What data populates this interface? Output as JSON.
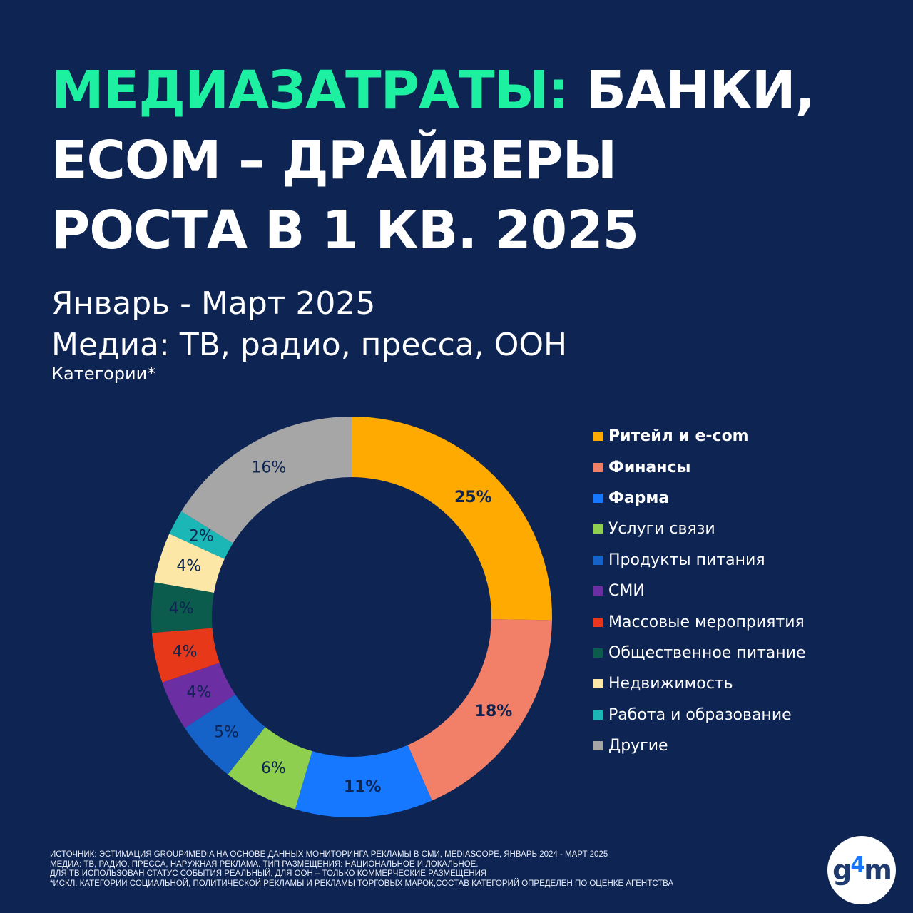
{
  "title": {
    "accent": "МЕДИАЗАТРАТЫ:",
    "line1_rest": " БАНКИ,",
    "line2": "ECOM – ДРАЙВЕРЫ",
    "line3": "РОСТА В 1 КВ. 2025"
  },
  "subtitle": {
    "period": "Январь - Март 2025",
    "media": "Медиа: ТВ, радио, пресса, OOH",
    "categories": "Категории*"
  },
  "chart_data": {
    "type": "pie",
    "variant": "donut",
    "categories": [
      "Ритейл и e-com",
      "Финансы",
      "Фарма",
      "Услуги связи",
      "Продукты питания",
      "СМИ",
      "Массовые мероприятия",
      "Общественное питание",
      "Недвижимость",
      "Работа и образование",
      "Другие"
    ],
    "values": [
      25,
      18,
      11,
      6,
      5,
      4,
      4,
      4,
      4,
      2,
      16
    ],
    "value_labels": [
      "25%",
      "18%",
      "11%",
      "6%",
      "5%",
      "4%",
      "4%",
      "4%",
      "4%",
      "2%",
      "16%"
    ],
    "colors": [
      "#ffaa00",
      "#f28068",
      "#1677ff",
      "#8fcf4f",
      "#1562c8",
      "#6b2fa3",
      "#e8381a",
      "#0b5c4d",
      "#fde7a6",
      "#1bb6b6",
      "#a6a6a6"
    ],
    "bold": [
      true,
      true,
      true,
      false,
      false,
      false,
      false,
      false,
      false,
      false,
      false
    ],
    "legend_position": "right"
  },
  "footnote": [
    "ИСТОЧНИК: ЭСТИМАЦИЯ GROUP4MEDIA НА ОСНОВЕ ДАННЫХ МОНИТОРИНГА РЕКЛАМЫ В СМИ, MEDIASCOPE, ЯНВАРЬ 2024 - МАРТ 2025",
    "МЕДИА: ТВ, РАДИО, ПРЕССА, НАРУЖНАЯ РЕКЛАМА. ТИП РАЗМЕЩЕНИЯ: НАЦИОНАЛЬНОЕ И ЛОКАЛЬНОЕ.",
    "ДЛЯ ТВ ИСПОЛЬЗОВАН СТАТУС СОБЫТИЯ РЕАЛЬНЫЙ, ДЛЯ ООН – ТОЛЬКО КОММЕРЧЕСКИЕ РАЗМЕЩЕНИЯ",
    " *ИСКЛ. КАТЕГОРИИ СОЦИАЛЬНОЙ, ПОЛИТИЧЕСКОЙ РЕКЛАМЫ И РЕКЛАМЫ ТОРГОВЫХ МАРОК,СОСТАВ КАТЕГОРИЙ ОПРЕДЕЛЕН ПО ОЦЕНКЕ АГЕНТСТВА"
  ],
  "logo": {
    "g": "g",
    "four": "4",
    "m": "m"
  }
}
